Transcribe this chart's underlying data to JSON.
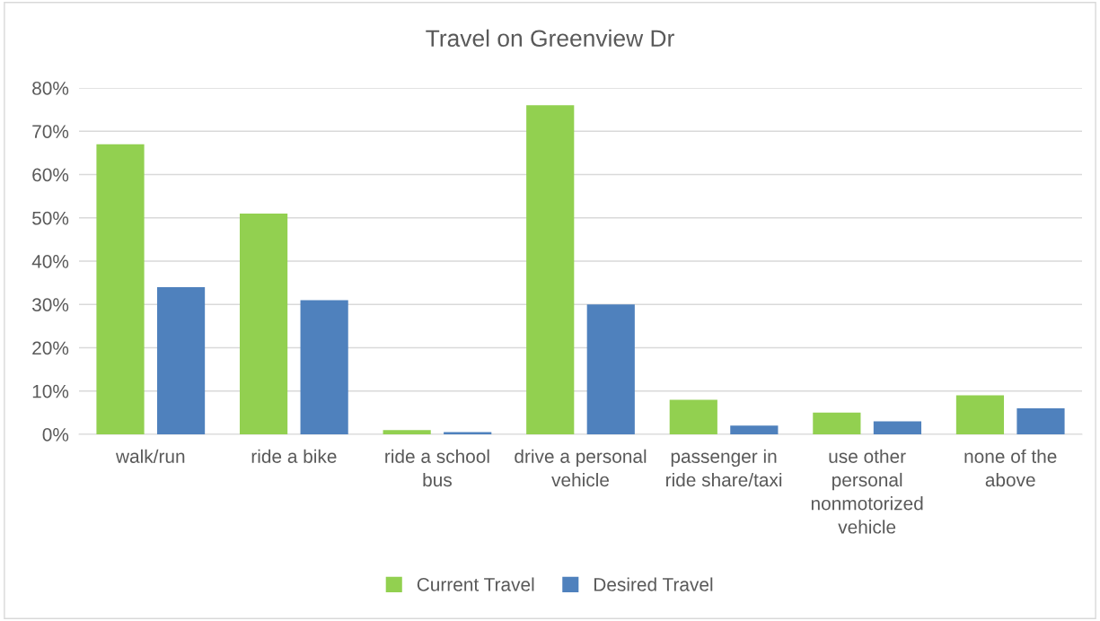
{
  "chart_data": {
    "type": "bar",
    "title": "Travel on Greenview Dr",
    "categories": [
      "walk/run",
      "ride a bike",
      "ride a school bus",
      "drive a personal vehicle",
      "passenger in ride share/taxi",
      "use other personal nonmotorized vehicle",
      "none of the above"
    ],
    "series": [
      {
        "name": "Current Travel",
        "color": "#92d050",
        "values": [
          67,
          51,
          1,
          76,
          8,
          5,
          9
        ]
      },
      {
        "name": "Desired Travel",
        "color": "#4f81bd",
        "values": [
          34,
          31,
          0.5,
          30,
          2,
          3,
          6
        ]
      }
    ],
    "ylim": [
      0,
      80
    ],
    "yticks": [
      {
        "value": 0,
        "label": "0%"
      },
      {
        "value": 10,
        "label": "10%"
      },
      {
        "value": 20,
        "label": "20%"
      },
      {
        "value": 30,
        "label": "30%"
      },
      {
        "value": 40,
        "label": "40%"
      },
      {
        "value": 50,
        "label": "50%"
      },
      {
        "value": 60,
        "label": "60%"
      },
      {
        "value": 70,
        "label": "70%"
      },
      {
        "value": 80,
        "label": "80%"
      }
    ],
    "grid": "y",
    "legend": "bottom"
  }
}
